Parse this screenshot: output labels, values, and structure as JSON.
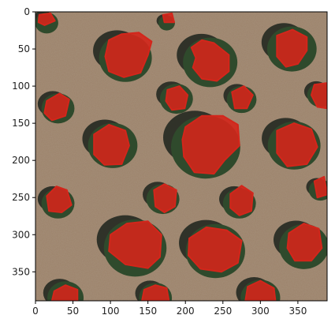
{
  "figure": {
    "xticks": [
      0,
      50,
      100,
      150,
      200,
      250,
      300,
      350
    ],
    "yticks": [
      0,
      50,
      100,
      150,
      200,
      250,
      300,
      350
    ],
    "xlim": [
      0,
      389
    ],
    "ylim": [
      389,
      0
    ],
    "ground_color": "#9c826a",
    "canopy_color": "#2f4a2c",
    "shadow_color": "#1c231c",
    "overlay_color": "#d3261b",
    "trees": [
      {
        "x": 120,
        "y": 62,
        "r": 32
      },
      {
        "x": 233,
        "y": 68,
        "r": 33
      },
      {
        "x": 342,
        "y": 50,
        "r": 30
      },
      {
        "x": 188,
        "y": 117,
        "r": 20
      },
      {
        "x": 275,
        "y": 118,
        "r": 18
      },
      {
        "x": 30,
        "y": 130,
        "r": 20
      },
      {
        "x": 380,
        "y": 112,
        "r": 16
      },
      {
        "x": 103,
        "y": 180,
        "r": 30
      },
      {
        "x": 227,
        "y": 182,
        "r": 42
      },
      {
        "x": 345,
        "y": 180,
        "r": 32
      },
      {
        "x": 30,
        "y": 258,
        "r": 20
      },
      {
        "x": 170,
        "y": 252,
        "r": 20
      },
      {
        "x": 272,
        "y": 258,
        "r": 20
      },
      {
        "x": 380,
        "y": 240,
        "r": 14
      },
      {
        "x": 133,
        "y": 318,
        "r": 38
      },
      {
        "x": 240,
        "y": 322,
        "r": 36
      },
      {
        "x": 358,
        "y": 316,
        "r": 30
      },
      {
        "x": 40,
        "y": 385,
        "r": 22
      },
      {
        "x": 160,
        "y": 385,
        "r": 20
      },
      {
        "x": 300,
        "y": 385,
        "r": 24
      },
      {
        "x": 15,
        "y": 15,
        "r": 14
      },
      {
        "x": 175,
        "y": 15,
        "r": 10
      }
    ],
    "masks": [
      {
        "pts": [
          [
            98,
            38
          ],
          [
            115,
            30
          ],
          [
            138,
            28
          ],
          [
            155,
            40
          ],
          [
            150,
            58
          ],
          [
            140,
            82
          ],
          [
            118,
            88
          ],
          [
            98,
            80
          ],
          [
            93,
            60
          ]
        ]
      },
      {
        "pts": [
          [
            208,
            48
          ],
          [
            222,
            38
          ],
          [
            238,
            42
          ],
          [
            258,
            58
          ],
          [
            258,
            80
          ],
          [
            242,
            93
          ],
          [
            222,
            90
          ],
          [
            210,
            75
          ],
          [
            214,
            62
          ]
        ]
      },
      {
        "pts": [
          [
            322,
            32
          ],
          [
            343,
            24
          ],
          [
            362,
            34
          ],
          [
            362,
            52
          ],
          [
            350,
            70
          ],
          [
            334,
            74
          ],
          [
            322,
            60
          ]
        ]
      },
      {
        "pts": [
          [
            176,
            105
          ],
          [
            192,
            100
          ],
          [
            203,
            112
          ],
          [
            199,
            130
          ],
          [
            182,
            132
          ],
          [
            174,
            120
          ]
        ]
      },
      {
        "pts": [
          [
            262,
            108
          ],
          [
            278,
            100
          ],
          [
            290,
            112
          ],
          [
            282,
            130
          ],
          [
            266,
            130
          ]
        ]
      },
      {
        "pts": [
          [
            15,
            120
          ],
          [
            32,
            110
          ],
          [
            45,
            118
          ],
          [
            40,
            140
          ],
          [
            22,
            146
          ],
          [
            12,
            136
          ]
        ]
      },
      {
        "pts": [
          [
            372,
            98
          ],
          [
            388,
            96
          ],
          [
            389,
            130
          ],
          [
            376,
            128
          ],
          [
            368,
            112
          ]
        ]
      },
      {
        "pts": [
          [
            78,
            165
          ],
          [
            98,
            152
          ],
          [
            120,
            160
          ],
          [
            125,
            180
          ],
          [
            115,
            205
          ],
          [
            92,
            206
          ],
          [
            78,
            192
          ]
        ]
      },
      {
        "pts": [
          [
            200,
            155
          ],
          [
            222,
            140
          ],
          [
            250,
            140
          ],
          [
            270,
            152
          ],
          [
            272,
            180
          ],
          [
            252,
            200
          ],
          [
            238,
            218
          ],
          [
            212,
            216
          ],
          [
            198,
            195
          ],
          [
            196,
            172
          ]
        ]
      },
      {
        "pts": [
          [
            322,
            160
          ],
          [
            345,
            150
          ],
          [
            368,
            158
          ],
          [
            376,
            182
          ],
          [
            362,
            205
          ],
          [
            336,
            208
          ],
          [
            322,
            190
          ]
        ]
      },
      {
        "pts": [
          [
            15,
            248
          ],
          [
            28,
            235
          ],
          [
            42,
            240
          ],
          [
            48,
            260
          ],
          [
            35,
            270
          ],
          [
            18,
            268
          ]
        ]
      },
      {
        "pts": [
          [
            158,
            240
          ],
          [
            172,
            232
          ],
          [
            188,
            240
          ],
          [
            186,
            262
          ],
          [
            172,
            270
          ],
          [
            160,
            262
          ]
        ]
      },
      {
        "pts": [
          [
            260,
            245
          ],
          [
            275,
            234
          ],
          [
            290,
            244
          ],
          [
            288,
            268
          ],
          [
            272,
            274
          ],
          [
            260,
            264
          ]
        ]
      },
      {
        "pts": [
          [
            372,
            228
          ],
          [
            385,
            222
          ],
          [
            389,
            246
          ],
          [
            376,
            250
          ]
        ]
      },
      {
        "pts": [
          [
            100,
            300
          ],
          [
            122,
            285
          ],
          [
            150,
            282
          ],
          [
            168,
            300
          ],
          [
            166,
            330
          ],
          [
            150,
            345
          ],
          [
            120,
            340
          ],
          [
            98,
            322
          ]
        ]
      },
      {
        "pts": [
          [
            205,
            305
          ],
          [
            228,
            290
          ],
          [
            255,
            294
          ],
          [
            275,
            308
          ],
          [
            270,
            338
          ],
          [
            248,
            350
          ],
          [
            220,
            346
          ],
          [
            204,
            328
          ]
        ]
      },
      {
        "pts": [
          [
            338,
            298
          ],
          [
            358,
            285
          ],
          [
            378,
            292
          ],
          [
            382,
            318
          ],
          [
            368,
            335
          ],
          [
            346,
            335
          ],
          [
            336,
            318
          ]
        ]
      },
      {
        "pts": [
          [
            25,
            376
          ],
          [
            40,
            368
          ],
          [
            56,
            374
          ],
          [
            56,
            389
          ],
          [
            22,
            389
          ]
        ]
      },
      {
        "pts": [
          [
            145,
            374
          ],
          [
            160,
            368
          ],
          [
            175,
            372
          ],
          [
            178,
            389
          ],
          [
            142,
            389
          ]
        ]
      },
      {
        "pts": [
          [
            283,
            370
          ],
          [
            300,
            362
          ],
          [
            318,
            372
          ],
          [
            320,
            389
          ],
          [
            280,
            389
          ]
        ]
      },
      {
        "pts": [
          [
            5,
            4
          ],
          [
            20,
            2
          ],
          [
            26,
            12
          ],
          [
            12,
            18
          ],
          [
            4,
            14
          ]
        ]
      },
      {
        "pts": [
          [
            170,
            4
          ],
          [
            182,
            2
          ],
          [
            185,
            14
          ],
          [
            172,
            14
          ]
        ]
      }
    ]
  }
}
